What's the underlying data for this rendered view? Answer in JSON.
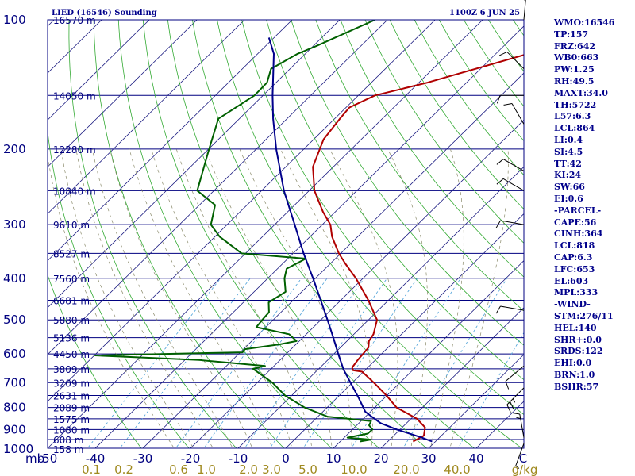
{
  "header": {
    "left_title": "LIED (16546) Sounding",
    "right_title": "1100Z  6 JUN 25"
  },
  "indices": [
    "WMO:16546",
    "TP:157",
    "FRZ:642",
    "WB0:663",
    "PW:1.25",
    "RH:49.5",
    "MAXT:34.0",
    "TH:5722",
    "L57:6.3",
    "LCL:864",
    "LI:0.4",
    "SI:4.5",
    "TT:42",
    "KI:24",
    "SW:66",
    "EI:0.6",
    "-PARCEL-",
    "CAPE:56",
    "CINH:364",
    "LCL:818",
    "CAP:6.3",
    "LFC:653",
    "EL:603",
    "MPL:333",
    "-WIND-",
    "STM:276/11",
    "HEL:140",
    "SHR+:0.0",
    "SRDS:122",
    "EHI:0.0",
    "BRN:1.0",
    "BSHR:57"
  ],
  "chart_data": {
    "type": "line",
    "title": "LIED (16546) Sounding",
    "subtitle": "1100Z  6 JUN 25",
    "pressure_axis": {
      "unit_label": "mb",
      "range": [
        1050,
        100
      ],
      "scale": "log",
      "ticks": [
        100,
        200,
        300,
        400,
        500,
        600,
        700,
        800,
        900,
        1000
      ]
    },
    "temperature_axis": {
      "unit_label": "C",
      "range": [
        -50,
        50
      ],
      "ticks": [
        -50,
        -40,
        -30,
        -20,
        -10,
        0,
        10,
        20,
        30,
        40
      ],
      "skew": true
    },
    "mixing_ratio_axis": {
      "unit_label": "g/kg",
      "ticks": [
        "0.1",
        "0.2",
        "0.6",
        "1.0",
        "2.0",
        "3.0",
        "5.0",
        "10.0",
        "20.0",
        "40.0"
      ]
    },
    "height_labels": [
      {
        "p": 100,
        "label": "16570 m"
      },
      {
        "p": 150,
        "label": "14050 m"
      },
      {
        "p": 200,
        "label": "12280 m"
      },
      {
        "p": 250,
        "label": "10840 m"
      },
      {
        "p": 300,
        "label": "9610 m"
      },
      {
        "p": 350,
        "label": "8527 m"
      },
      {
        "p": 400,
        "label": "7560 m"
      },
      {
        "p": 450,
        "label": "6681 m"
      },
      {
        "p": 500,
        "label": "5880 m"
      },
      {
        "p": 550,
        "label": "5136 m"
      },
      {
        "p": 600,
        "label": "4450 m"
      },
      {
        "p": 650,
        "label": "3809 m"
      },
      {
        "p": 700,
        "label": "3209 m"
      },
      {
        "p": 750,
        "label": "2631 m"
      },
      {
        "p": 800,
        "label": "2089 m"
      },
      {
        "p": 850,
        "label": "1575 m"
      },
      {
        "p": 900,
        "label": "1080 m"
      },
      {
        "p": 950,
        "label": "608 m"
      },
      {
        "p": 1000,
        "label": "158 m"
      }
    ],
    "series": [
      {
        "name": "temperature",
        "color": "#b00000",
        "points": [
          [
            960,
            25.3
          ],
          [
            930,
            26.3
          ],
          [
            890,
            24.8
          ],
          [
            850,
            21.3
          ],
          [
            800,
            14.6
          ],
          [
            750,
            9.9
          ],
          [
            700,
            4.5
          ],
          [
            660,
            -0.3
          ],
          [
            655,
            -2.5
          ],
          [
            645,
            -3.3
          ],
          [
            620,
            -3.7
          ],
          [
            580,
            -4.1
          ],
          [
            560,
            -5.4
          ],
          [
            540,
            -5.9
          ],
          [
            500,
            -8.2
          ],
          [
            450,
            -14.2
          ],
          [
            400,
            -21.5
          ],
          [
            370,
            -26.8
          ],
          [
            350,
            -30.4
          ],
          [
            320,
            -35.4
          ],
          [
            300,
            -38.3
          ],
          [
            280,
            -42.6
          ],
          [
            250,
            -48.9
          ],
          [
            220,
            -54.3
          ],
          [
            190,
            -57.9
          ],
          [
            170,
            -58.9
          ],
          [
            160,
            -59.3
          ],
          [
            150,
            -56.5
          ],
          [
            140,
            -48.2
          ],
          [
            120,
            -33.2
          ],
          [
            110,
            -29.2
          ],
          [
            100,
            -24.6
          ]
        ]
      },
      {
        "name": "dewpoint",
        "color": "#006000",
        "points": [
          [
            960,
            14.1
          ],
          [
            950,
            16.0
          ],
          [
            940,
            10.7
          ],
          [
            920,
            14.1
          ],
          [
            900,
            14.2
          ],
          [
            880,
            12.6
          ],
          [
            860,
            12.1
          ],
          [
            840,
            2.0
          ],
          [
            800,
            -4.7
          ],
          [
            750,
            -11.4
          ],
          [
            700,
            -16.8
          ],
          [
            650,
            -23.8
          ],
          [
            640,
            -21.9
          ],
          [
            620,
            -37.0
          ],
          [
            605,
            -59.8
          ],
          [
            595,
            -29.5
          ],
          [
            585,
            -29.7
          ],
          [
            570,
            -23.4
          ],
          [
            560,
            -20.6
          ],
          [
            540,
            -23.6
          ],
          [
            520,
            -32.0
          ],
          [
            500,
            -32.3
          ],
          [
            480,
            -32.5
          ],
          [
            455,
            -34.7
          ],
          [
            430,
            -33.4
          ],
          [
            400,
            -36.5
          ],
          [
            380,
            -38.1
          ],
          [
            360,
            -36.2
          ],
          [
            350,
            -50.8
          ],
          [
            320,
            -59.0
          ],
          [
            300,
            -63.4
          ],
          [
            270,
            -66.7
          ],
          [
            250,
            -73.5
          ],
          [
            200,
            -79.9
          ],
          [
            170,
            -84.4
          ],
          [
            150,
            -81.8
          ],
          [
            140,
            -81.9
          ],
          [
            130,
            -84.0
          ],
          [
            120,
            -81.6
          ],
          [
            115,
            -79.3
          ],
          [
            100,
            -72.6
          ]
        ]
      },
      {
        "name": "parcel",
        "color": "#00008b",
        "points": [
          [
            960,
            29.3
          ],
          [
            940,
            26.3
          ],
          [
            900,
            19.3
          ],
          [
            870,
            14.6
          ],
          [
            850,
            12.4
          ],
          [
            818,
            8.9
          ],
          [
            760,
            4.6
          ],
          [
            700,
            -0.4
          ],
          [
            653,
            -4.6
          ],
          [
            600,
            -9.1
          ],
          [
            550,
            -13.6
          ],
          [
            500,
            -18.6
          ],
          [
            450,
            -24.2
          ],
          [
            400,
            -30.5
          ],
          [
            350,
            -37.8
          ],
          [
            300,
            -45.8
          ],
          [
            250,
            -55.3
          ],
          [
            200,
            -65.8
          ],
          [
            170,
            -72.9
          ],
          [
            150,
            -78.0
          ],
          [
            120,
            -86.6
          ],
          [
            110,
            -91.1
          ]
        ]
      }
    ],
    "wind_barbs": [
      {
        "p": 100,
        "dir": 5,
        "spd": 20
      },
      {
        "p": 130,
        "dir": 315,
        "spd": 10
      },
      {
        "p": 150,
        "dir": 270,
        "spd": 10
      },
      {
        "p": 175,
        "dir": 330,
        "spd": 10
      },
      {
        "p": 225,
        "dir": 300,
        "spd": 10
      },
      {
        "p": 250,
        "dir": 300,
        "spd": 10
      },
      {
        "p": 300,
        "dir": 280,
        "spd": 10
      },
      {
        "p": 475,
        "dir": 280,
        "spd": 10
      },
      {
        "p": 640,
        "dir": 230,
        "spd": 10
      },
      {
        "p": 720,
        "dir": 225,
        "spd": 25
      },
      {
        "p": 940,
        "dir": 350,
        "spd": 15
      },
      {
        "p": 970,
        "dir": 200,
        "spd": 5
      }
    ],
    "grid": true
  }
}
